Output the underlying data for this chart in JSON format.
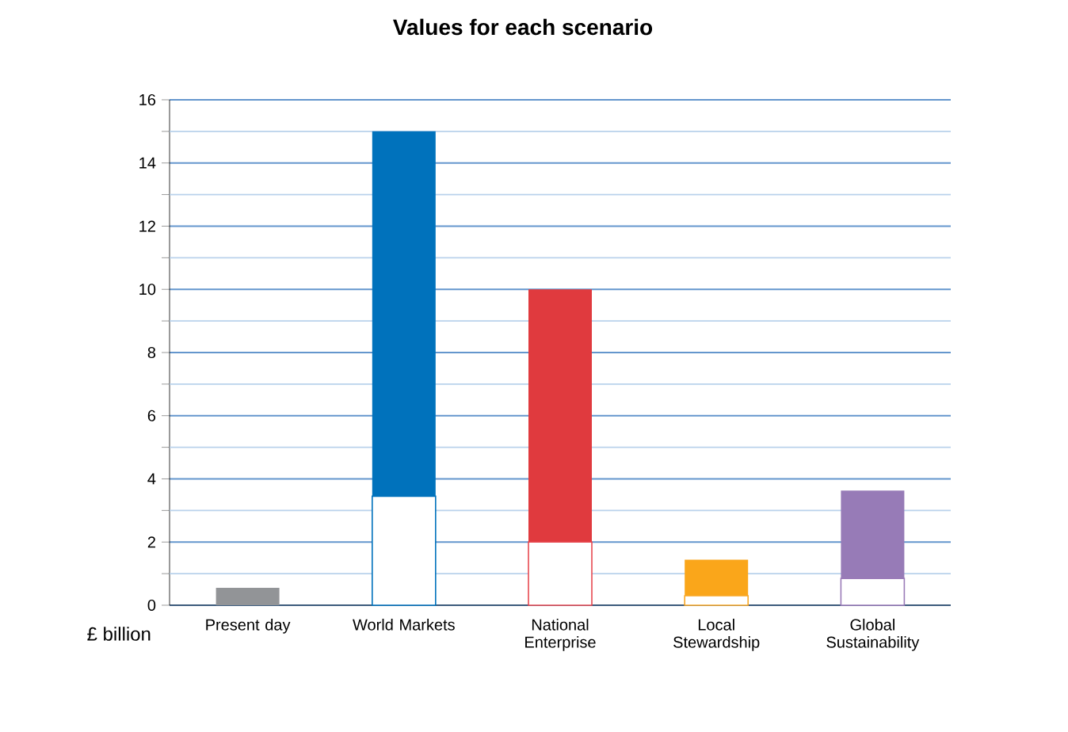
{
  "chart_data": {
    "type": "bar",
    "title": "Values for each scenario",
    "ylabel": "£ billion",
    "stacked": true,
    "categories": [
      "Present day",
      "World Markets",
      "National Enterprise",
      "Local Stewardship",
      "Global Sustainability"
    ],
    "series": [
      {
        "colors": [
          "#8c8c8c",
          "#0072bc",
          "#e84a52",
          "#f9a826",
          "#9a7bb8"
        ],
        "values": [
          null,
          3.45,
          2.0,
          0.3,
          0.85
        ]
      },
      {
        "colors": [
          "#929497",
          "#0072bc",
          "#e03a3e",
          "#faa61a",
          "#977bb7"
        ],
        "values": [
          0.55,
          11.55,
          8.0,
          1.14,
          2.78
        ]
      }
    ],
    "ylim": [
      0,
      16
    ],
    "yticks": [
      0,
      {
        "value": 1,
        "label": null
      },
      2,
      {
        "value": 3,
        "label": null
      },
      4,
      {
        "value": 5,
        "label": null
      },
      6,
      {
        "value": 7,
        "label": null
      },
      8,
      {
        "value": 9,
        "label": null
      },
      10,
      {
        "value": 11,
        "label": null
      },
      12,
      {
        "value": 13,
        "label": null
      },
      14,
      {
        "value": 15,
        "label": null
      },
      16
    ],
    "grid": "y"
  }
}
